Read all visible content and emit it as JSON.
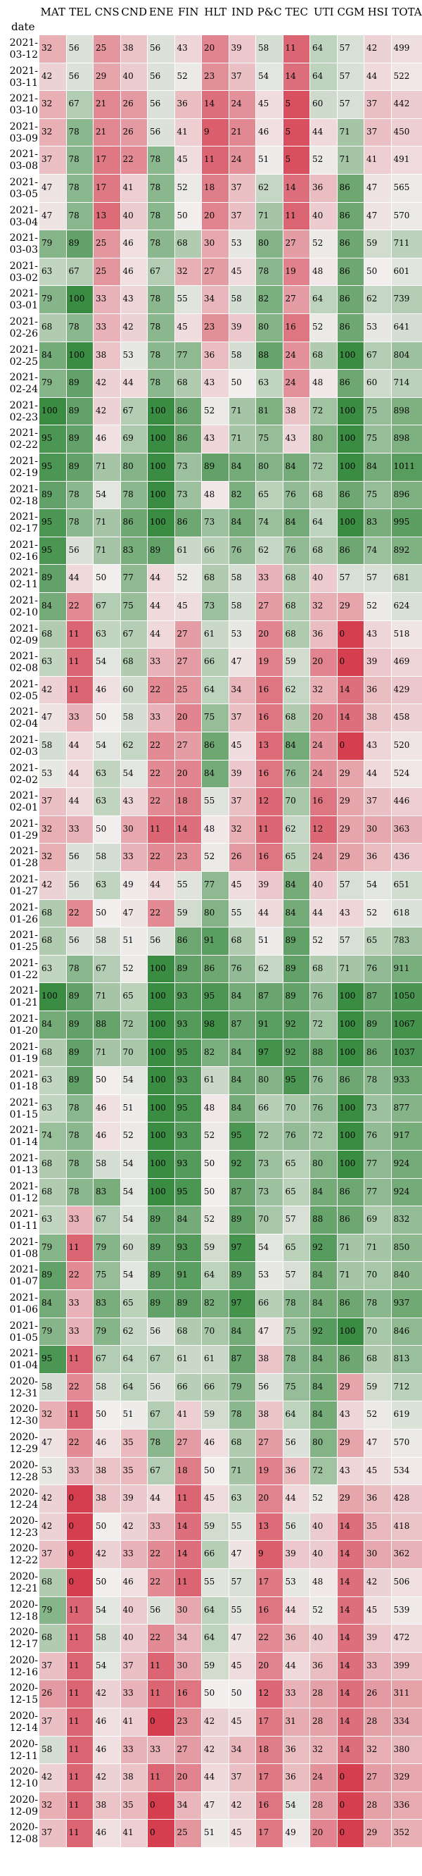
{
  "chart_data": {
    "type": "heatmap",
    "index_label": "date",
    "columns": [
      "MAT",
      "TEL",
      "CNS",
      "CND",
      "ENE",
      "FIN",
      "HLT",
      "IND",
      "P&C",
      "TEC",
      "UTI",
      "CGM",
      "HSI",
      "TOTAL"
    ],
    "rows": [
      {
        "date": "2021-03-12",
        "values": [
          32,
          56,
          25,
          38,
          56,
          43,
          20,
          39,
          58,
          11,
          64,
          57,
          42,
          499
        ]
      },
      {
        "date": "2021-03-11",
        "values": [
          42,
          56,
          29,
          40,
          56,
          52,
          23,
          37,
          54,
          14,
          64,
          57,
          44,
          522
        ]
      },
      {
        "date": "2021-03-10",
        "values": [
          32,
          67,
          21,
          26,
          56,
          36,
          14,
          24,
          45,
          5,
          60,
          57,
          37,
          442
        ]
      },
      {
        "date": "2021-03-09",
        "values": [
          32,
          78,
          21,
          26,
          56,
          41,
          9,
          21,
          46,
          5,
          44,
          71,
          37,
          450
        ]
      },
      {
        "date": "2021-03-08",
        "values": [
          37,
          78,
          17,
          22,
          78,
          45,
          11,
          24,
          51,
          5,
          52,
          71,
          41,
          491
        ]
      },
      {
        "date": "2021-03-05",
        "values": [
          47,
          78,
          17,
          41,
          78,
          52,
          18,
          37,
          62,
          14,
          36,
          86,
          47,
          565
        ]
      },
      {
        "date": "2021-03-04",
        "values": [
          47,
          78,
          13,
          40,
          78,
          50,
          20,
          37,
          71,
          11,
          40,
          86,
          47,
          570
        ]
      },
      {
        "date": "2021-03-03",
        "values": [
          79,
          89,
          25,
          46,
          78,
          68,
          30,
          53,
          80,
          27,
          52,
          86,
          59,
          711
        ]
      },
      {
        "date": "2021-03-02",
        "values": [
          63,
          67,
          25,
          46,
          67,
          32,
          27,
          45,
          78,
          19,
          48,
          86,
          50,
          601
        ]
      },
      {
        "date": "2021-03-01",
        "values": [
          79,
          100,
          33,
          43,
          78,
          55,
          34,
          58,
          82,
          27,
          64,
          86,
          62,
          739
        ]
      },
      {
        "date": "2021-02-26",
        "values": [
          68,
          78,
          33,
          42,
          78,
          45,
          23,
          39,
          80,
          16,
          52,
          86,
          53,
          641
        ]
      },
      {
        "date": "2021-02-25",
        "values": [
          84,
          100,
          38,
          53,
          78,
          77,
          36,
          58,
          88,
          24,
          68,
          100,
          67,
          804
        ]
      },
      {
        "date": "2021-02-24",
        "values": [
          79,
          89,
          42,
          44,
          78,
          68,
          43,
          50,
          63,
          24,
          48,
          86,
          60,
          714
        ]
      },
      {
        "date": "2021-02-23",
        "values": [
          100,
          89,
          42,
          67,
          100,
          86,
          52,
          71,
          81,
          38,
          72,
          100,
          75,
          898
        ]
      },
      {
        "date": "2021-02-22",
        "values": [
          95,
          89,
          46,
          69,
          100,
          86,
          43,
          71,
          75,
          43,
          80,
          100,
          75,
          898
        ]
      },
      {
        "date": "2021-02-19",
        "values": [
          95,
          89,
          71,
          80,
          100,
          73,
          89,
          84,
          80,
          84,
          72,
          100,
          84,
          1011
        ]
      },
      {
        "date": "2021-02-18",
        "values": [
          89,
          78,
          54,
          78,
          100,
          73,
          48,
          82,
          65,
          76,
          68,
          86,
          75,
          896
        ]
      },
      {
        "date": "2021-02-17",
        "values": [
          95,
          78,
          71,
          86,
          100,
          86,
          73,
          84,
          74,
          84,
          64,
          100,
          83,
          995
        ]
      },
      {
        "date": "2021-02-16",
        "values": [
          95,
          56,
          71,
          83,
          89,
          61,
          66,
          76,
          62,
          76,
          68,
          86,
          74,
          892
        ]
      },
      {
        "date": "2021-02-11",
        "values": [
          89,
          44,
          50,
          77,
          44,
          52,
          68,
          58,
          33,
          68,
          40,
          57,
          57,
          681
        ]
      },
      {
        "date": "2021-02-10",
        "values": [
          84,
          22,
          67,
          75,
          44,
          45,
          73,
          58,
          27,
          68,
          32,
          29,
          52,
          624
        ]
      },
      {
        "date": "2021-02-09",
        "values": [
          68,
          11,
          63,
          67,
          44,
          27,
          61,
          53,
          20,
          68,
          36,
          0,
          43,
          518
        ]
      },
      {
        "date": "2021-02-08",
        "values": [
          63,
          11,
          54,
          68,
          33,
          27,
          66,
          47,
          19,
          59,
          20,
          0,
          39,
          469
        ]
      },
      {
        "date": "2021-02-05",
        "values": [
          42,
          11,
          46,
          60,
          22,
          25,
          64,
          34,
          16,
          62,
          32,
          14,
          36,
          429
        ]
      },
      {
        "date": "2021-02-04",
        "values": [
          47,
          33,
          50,
          58,
          33,
          20,
          75,
          37,
          16,
          68,
          20,
          14,
          38,
          458
        ]
      },
      {
        "date": "2021-02-03",
        "values": [
          58,
          44,
          54,
          62,
          22,
          27,
          86,
          45,
          13,
          84,
          24,
          0,
          43,
          520
        ]
      },
      {
        "date": "2021-02-02",
        "values": [
          53,
          44,
          63,
          54,
          22,
          20,
          84,
          39,
          16,
          76,
          24,
          29,
          44,
          524
        ]
      },
      {
        "date": "2021-02-01",
        "values": [
          37,
          44,
          63,
          43,
          22,
          18,
          55,
          37,
          12,
          70,
          16,
          29,
          37,
          446
        ]
      },
      {
        "date": "2021-01-29",
        "values": [
          32,
          33,
          50,
          30,
          11,
          14,
          48,
          32,
          11,
          62,
          12,
          29,
          30,
          363
        ]
      },
      {
        "date": "2021-01-28",
        "values": [
          32,
          56,
          58,
          33,
          22,
          23,
          52,
          26,
          16,
          65,
          24,
          29,
          36,
          436
        ]
      },
      {
        "date": "2021-01-27",
        "values": [
          42,
          56,
          63,
          49,
          44,
          55,
          77,
          45,
          39,
          84,
          40,
          57,
          54,
          651
        ]
      },
      {
        "date": "2021-01-26",
        "values": [
          68,
          22,
          50,
          47,
          22,
          59,
          80,
          55,
          44,
          84,
          44,
          43,
          52,
          618
        ]
      },
      {
        "date": "2021-01-25",
        "values": [
          68,
          56,
          58,
          51,
          56,
          86,
          91,
          68,
          51,
          89,
          52,
          57,
          65,
          783
        ]
      },
      {
        "date": "2021-01-22",
        "values": [
          63,
          78,
          67,
          52,
          100,
          89,
          86,
          76,
          62,
          89,
          68,
          71,
          76,
          911
        ]
      },
      {
        "date": "2021-01-21",
        "values": [
          100,
          89,
          71,
          65,
          100,
          93,
          95,
          84,
          87,
          89,
          76,
          100,
          87,
          1050
        ]
      },
      {
        "date": "2021-01-20",
        "values": [
          84,
          89,
          88,
          72,
          100,
          93,
          98,
          87,
          91,
          92,
          72,
          100,
          89,
          1067
        ]
      },
      {
        "date": "2021-01-19",
        "values": [
          68,
          89,
          71,
          70,
          100,
          95,
          82,
          84,
          97,
          92,
          88,
          100,
          86,
          1037
        ]
      },
      {
        "date": "2021-01-18",
        "values": [
          63,
          89,
          50,
          54,
          100,
          93,
          61,
          84,
          80,
          95,
          76,
          86,
          78,
          933
        ]
      },
      {
        "date": "2021-01-15",
        "values": [
          63,
          78,
          46,
          51,
          100,
          95,
          48,
          84,
          66,
          70,
          76,
          100,
          73,
          877
        ]
      },
      {
        "date": "2021-01-14",
        "values": [
          74,
          78,
          46,
          52,
          100,
          93,
          52,
          95,
          72,
          76,
          72,
          100,
          76,
          917
        ]
      },
      {
        "date": "2021-01-13",
        "values": [
          68,
          78,
          58,
          54,
          100,
          93,
          50,
          92,
          73,
          65,
          80,
          100,
          77,
          924
        ]
      },
      {
        "date": "2021-01-12",
        "values": [
          68,
          78,
          83,
          54,
          100,
          95,
          50,
          87,
          73,
          65,
          84,
          86,
          77,
          924
        ]
      },
      {
        "date": "2021-01-11",
        "values": [
          63,
          33,
          67,
          54,
          89,
          84,
          52,
          89,
          70,
          57,
          88,
          86,
          69,
          832
        ]
      },
      {
        "date": "2021-01-08",
        "values": [
          79,
          11,
          79,
          60,
          89,
          93,
          59,
          97,
          54,
          65,
          92,
          71,
          71,
          850
        ]
      },
      {
        "date": "2021-01-07",
        "values": [
          89,
          22,
          75,
          54,
          89,
          91,
          64,
          89,
          53,
          57,
          84,
          71,
          70,
          840
        ]
      },
      {
        "date": "2021-01-06",
        "values": [
          84,
          33,
          83,
          65,
          89,
          89,
          82,
          97,
          66,
          78,
          84,
          86,
          78,
          937
        ]
      },
      {
        "date": "2021-01-05",
        "values": [
          79,
          33,
          79,
          62,
          56,
          68,
          70,
          84,
          47,
          75,
          92,
          100,
          70,
          846
        ]
      },
      {
        "date": "2021-01-04",
        "values": [
          95,
          11,
          67,
          64,
          67,
          61,
          61,
          87,
          38,
          78,
          84,
          86,
          68,
          813
        ]
      },
      {
        "date": "2020-12-31",
        "values": [
          58,
          22,
          58,
          64,
          56,
          66,
          66,
          79,
          56,
          75,
          84,
          29,
          59,
          712
        ]
      },
      {
        "date": "2020-12-30",
        "values": [
          32,
          11,
          50,
          51,
          67,
          41,
          59,
          78,
          38,
          64,
          84,
          43,
          52,
          619
        ]
      },
      {
        "date": "2020-12-29",
        "values": [
          47,
          22,
          46,
          35,
          78,
          27,
          46,
          68,
          27,
          56,
          80,
          29,
          47,
          570
        ]
      },
      {
        "date": "2020-12-28",
        "values": [
          53,
          33,
          38,
          35,
          67,
          18,
          50,
          71,
          19,
          36,
          72,
          43,
          45,
          534
        ]
      },
      {
        "date": "2020-12-24",
        "values": [
          42,
          0,
          38,
          39,
          44,
          11,
          45,
          63,
          20,
          44,
          52,
          29,
          36,
          428
        ]
      },
      {
        "date": "2020-12-23",
        "values": [
          42,
          0,
          50,
          42,
          33,
          14,
          59,
          55,
          13,
          56,
          40,
          14,
          35,
          418
        ]
      },
      {
        "date": "2020-12-22",
        "values": [
          37,
          0,
          42,
          33,
          22,
          14,
          66,
          47,
          9,
          39,
          40,
          14,
          30,
          362
        ]
      },
      {
        "date": "2020-12-21",
        "values": [
          68,
          0,
          50,
          46,
          22,
          11,
          55,
          57,
          17,
          53,
          48,
          14,
          42,
          506
        ]
      },
      {
        "date": "2020-12-18",
        "values": [
          79,
          11,
          54,
          40,
          56,
          30,
          64,
          55,
          16,
          44,
          52,
          14,
          45,
          539
        ]
      },
      {
        "date": "2020-12-17",
        "values": [
          68,
          11,
          58,
          40,
          22,
          34,
          64,
          47,
          22,
          36,
          40,
          14,
          39,
          472
        ]
      },
      {
        "date": "2020-12-16",
        "values": [
          37,
          11,
          54,
          37,
          11,
          30,
          59,
          45,
          20,
          44,
          36,
          14,
          33,
          399
        ]
      },
      {
        "date": "2020-12-15",
        "values": [
          26,
          11,
          42,
          33,
          11,
          16,
          50,
          50,
          12,
          33,
          28,
          14,
          26,
          311
        ]
      },
      {
        "date": "2020-12-14",
        "values": [
          37,
          11,
          46,
          41,
          0,
          23,
          42,
          45,
          17,
          31,
          28,
          14,
          28,
          334
        ]
      },
      {
        "date": "2020-12-11",
        "values": [
          58,
          11,
          46,
          33,
          33,
          27,
          42,
          34,
          18,
          36,
          32,
          14,
          32,
          380
        ]
      },
      {
        "date": "2020-12-10",
        "values": [
          42,
          11,
          42,
          38,
          11,
          20,
          44,
          37,
          17,
          36,
          24,
          0,
          27,
          329
        ]
      },
      {
        "date": "2020-12-09",
        "values": [
          32,
          11,
          38,
          35,
          0,
          34,
          47,
          42,
          16,
          54,
          28,
          0,
          28,
          336
        ]
      },
      {
        "date": "2020-12-08",
        "values": [
          37,
          11,
          46,
          41,
          0,
          25,
          51,
          45,
          17,
          49,
          20,
          0,
          29,
          352
        ]
      }
    ]
  }
}
